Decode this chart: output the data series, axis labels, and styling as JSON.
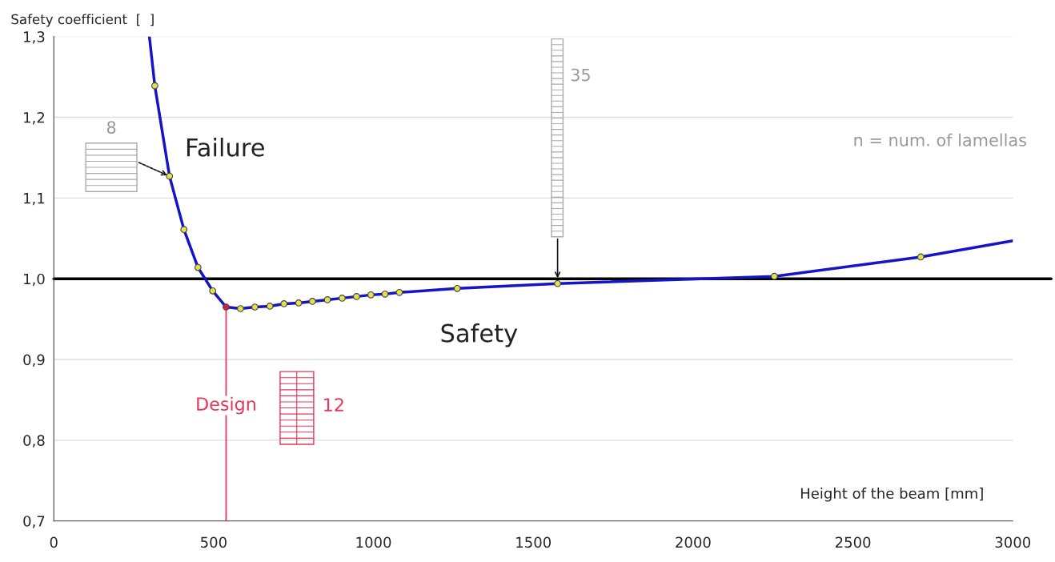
{
  "chart_data": {
    "type": "line",
    "xlabel": "Height of the beam [mm]",
    "ylabel": "Safety coefficient  [  ]",
    "xlim": [
      0,
      3000
    ],
    "xticks": [
      0,
      500,
      1000,
      1500,
      2000,
      2500,
      3000
    ],
    "ylim": [
      0.7,
      1.3
    ],
    "yticks": [
      {
        "value": 0.7,
        "label": "0,7"
      },
      {
        "value": 0.8,
        "label": "0,8"
      },
      {
        "value": 0.9,
        "label": "0,9"
      },
      {
        "value": 1.0,
        "label": "1,0"
      },
      {
        "value": 1.1,
        "label": "1,1"
      },
      {
        "value": 1.2,
        "label": "1,2"
      },
      {
        "value": 1.3,
        "label": "1,3"
      }
    ],
    "grid": "y",
    "legend": false,
    "series": [
      {
        "color": "#1414c8",
        "marker": "none",
        "x": [
          299,
          316,
          362,
          407,
          451,
          497,
          539,
          584,
          629,
          676,
          720,
          766,
          809,
          856,
          902,
          947,
          992,
          1036,
          1081,
          1262,
          1576,
          2254,
          2712,
          3000
        ],
        "values": [
          1.3,
          1.239,
          1.127,
          1.061,
          1.014,
          0.985,
          0.965,
          0.963,
          0.965,
          0.966,
          0.969,
          0.97,
          0.972,
          0.974,
          0.976,
          0.978,
          0.98,
          0.981,
          0.983,
          0.988,
          0.994,
          1.003,
          1.027,
          1.047
        ]
      },
      {
        "type": "scatter",
        "marker": "circle",
        "colors": [
          "#e6e04a",
          "#e6e04a",
          "#e6e04a",
          "#e6e04a",
          "#e6e04a",
          "#d0204a",
          "#e6e04a",
          "#e6e04a",
          "#e6e04a",
          "#e6e04a",
          "#e6e04a",
          "#e6e04a",
          "#e6e04a",
          "#e6e04a",
          "#e6e04a",
          "#e6e04a",
          "#e6e04a",
          "#e6e04a",
          "#e6e04a",
          "#e6e04a",
          "#e6e04a",
          "#e6e04a"
        ],
        "x": [
          316,
          362,
          407,
          451,
          497,
          539,
          584,
          629,
          676,
          720,
          766,
          809,
          856,
          902,
          947,
          992,
          1036,
          1081,
          1262,
          1576,
          2254,
          2712
        ],
        "values": [
          1.239,
          1.127,
          1.061,
          1.014,
          0.985,
          0.965,
          0.963,
          0.965,
          0.966,
          0.969,
          0.97,
          0.972,
          0.974,
          0.976,
          0.978,
          0.98,
          0.981,
          0.983,
          0.988,
          0.994,
          1.003,
          1.027
        ]
      }
    ],
    "ref_lines": [
      {
        "axis": "y",
        "value": 1.0,
        "color": "#000000"
      },
      {
        "axis": "x",
        "value": 539,
        "label": "Design",
        "color": "#e8375a"
      }
    ],
    "annotations": [
      "Failure",
      "Safety",
      "n = num. of lamellas",
      "8",
      "35",
      "12"
    ]
  }
}
